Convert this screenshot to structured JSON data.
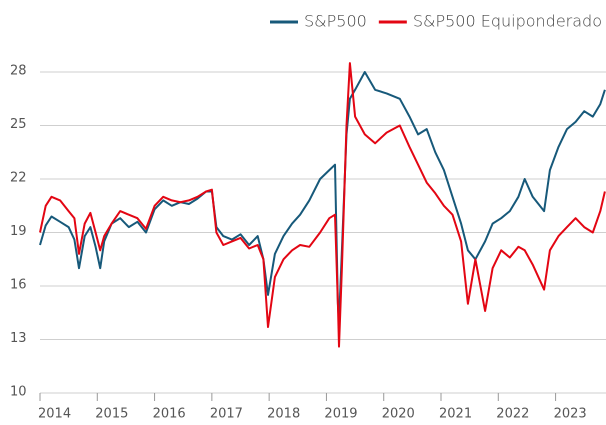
{
  "chart_data": {
    "type": "line",
    "x": [
      2014.0,
      2014.1,
      2014.2,
      2014.35,
      2014.5,
      2014.6,
      2014.68,
      2014.78,
      2014.88,
      2014.97,
      2015.05,
      2015.12,
      2015.25,
      2015.4,
      2015.55,
      2015.7,
      2015.85,
      2016.0,
      2016.15,
      2016.3,
      2016.45,
      2016.6,
      2016.75,
      2016.9,
      2017.0,
      2017.08,
      2017.2,
      2017.35,
      2017.5,
      2017.65,
      2017.8,
      2017.9,
      2017.98,
      2018.1,
      2018.25,
      2018.4,
      2018.54,
      2018.7,
      2018.89,
      2019.05,
      2019.15,
      2019.2,
      2019.22,
      2019.27,
      2019.35,
      2019.41,
      2019.5,
      2019.67,
      2019.85,
      2020.05,
      2020.28,
      2020.45,
      2020.6,
      2020.75,
      2020.9,
      2021.05,
      2021.2,
      2021.35,
      2021.47,
      2021.6,
      2021.77,
      2021.9,
      2022.05,
      2022.2,
      2022.35,
      2022.46,
      2022.6,
      2022.8,
      2022.9,
      2023.05,
      2023.2,
      2023.35,
      2023.5,
      2023.65,
      2023.78,
      2023.86
    ],
    "series": [
      {
        "name": "S&P500",
        "color": "#17597a",
        "values": [
          18.3,
          19.4,
          19.9,
          19.6,
          19.3,
          18.6,
          17.0,
          18.8,
          19.3,
          18.2,
          17.0,
          18.5,
          19.5,
          19.8,
          19.3,
          19.6,
          19.0,
          20.3,
          20.8,
          20.5,
          20.7,
          20.6,
          20.9,
          21.3,
          21.3,
          19.3,
          18.8,
          18.6,
          18.9,
          18.3,
          18.8,
          17.5,
          15.5,
          17.8,
          18.8,
          19.5,
          20.0,
          20.8,
          22.0,
          22.5,
          22.8,
          15.0,
          14.0,
          18.0,
          24.5,
          26.5,
          27.0,
          28.0,
          27.0,
          26.8,
          26.5,
          25.5,
          24.5,
          24.8,
          23.5,
          22.5,
          21.0,
          19.5,
          18.0,
          17.5,
          18.5,
          19.5,
          19.8,
          20.2,
          21.0,
          22.0,
          21.0,
          20.2,
          22.5,
          23.8,
          24.8,
          25.2,
          25.8,
          25.5,
          26.2,
          27.0
        ]
      },
      {
        "name": "S&P500 Equiponderado",
        "color": "#e30613",
        "values": [
          19.0,
          20.5,
          21.0,
          20.8,
          20.2,
          19.8,
          17.8,
          19.5,
          20.1,
          19.0,
          18.0,
          18.8,
          19.5,
          20.2,
          20.0,
          19.8,
          19.2,
          20.5,
          21.0,
          20.8,
          20.7,
          20.8,
          21.0,
          21.3,
          21.4,
          19.0,
          18.3,
          18.5,
          18.7,
          18.1,
          18.3,
          17.5,
          13.7,
          16.5,
          17.5,
          18.0,
          18.3,
          18.2,
          19.0,
          19.8,
          20.0,
          15.0,
          12.6,
          17.0,
          25.0,
          28.5,
          25.5,
          24.5,
          24.0,
          24.6,
          25.0,
          23.8,
          22.8,
          21.8,
          21.2,
          20.5,
          20.0,
          18.5,
          15.0,
          17.5,
          14.6,
          17.0,
          18.0,
          17.6,
          18.2,
          18.0,
          17.2,
          15.8,
          18.0,
          18.8,
          19.3,
          19.8,
          19.3,
          19.0,
          20.2,
          21.3
        ]
      }
    ],
    "xlim": [
      2014.0,
      2023.88
    ],
    "xticks": [
      2014,
      2015,
      2016,
      2017,
      2018,
      2019,
      2020,
      2021,
      2022,
      2023
    ],
    "ylim": [
      10,
      28
    ],
    "yticks": [
      10,
      13,
      16,
      19,
      22,
      25,
      28
    ],
    "grid": true,
    "legend": "top-right"
  }
}
